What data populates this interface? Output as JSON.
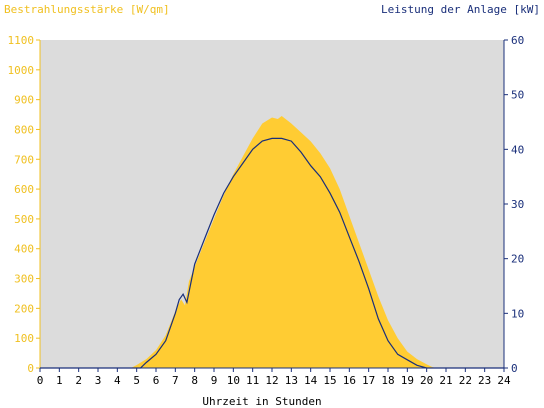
{
  "chart_data": {
    "type": "area",
    "title_left": "Bestrahlungsstärke [W/qm]",
    "title_right": "Leistung der Anlage [kW]",
    "xlabel": "Uhrzeit in Stunden",
    "xlim": [
      0,
      24
    ],
    "x_ticks": [
      "0",
      "1",
      "2",
      "3",
      "4",
      "5",
      "6",
      "7",
      "8",
      "9",
      "10",
      "11",
      "12",
      "13",
      "14",
      "15",
      "16",
      "17",
      "18",
      "19",
      "20",
      "21",
      "22",
      "23",
      "24"
    ],
    "y_left_lim": [
      0,
      1100
    ],
    "y_left_ticks": [
      "0",
      "100",
      "200",
      "300",
      "400",
      "500",
      "600",
      "700",
      "800",
      "900",
      "1000",
      "1100"
    ],
    "y_right_lim": [
      0,
      60
    ],
    "y_right_ticks": [
      "0",
      "10",
      "20",
      "30",
      "40",
      "50",
      "60"
    ],
    "series": [
      {
        "axis": "left",
        "kind": "area",
        "color": "#ffcc33",
        "x": [
          0,
          4.7,
          5.0,
          5.5,
          6.0,
          6.5,
          7.0,
          7.3,
          7.5,
          7.7,
          8.0,
          8.5,
          9.0,
          9.5,
          10.0,
          10.5,
          11.0,
          11.5,
          12.0,
          12.3,
          12.5,
          12.8,
          13.0,
          13.5,
          14.0,
          14.5,
          15.0,
          15.5,
          16.0,
          16.5,
          17.0,
          17.5,
          18.0,
          18.5,
          19.0,
          19.5,
          20.0,
          20.3,
          20.5,
          24
        ],
        "y": [
          0,
          0,
          10,
          30,
          60,
          110,
          190,
          230,
          210,
          290,
          340,
          420,
          500,
          580,
          650,
          710,
          770,
          820,
          840,
          835,
          845,
          830,
          820,
          790,
          760,
          720,
          670,
          600,
          510,
          420,
          330,
          240,
          160,
          100,
          55,
          30,
          12,
          3,
          0,
          0
        ]
      },
      {
        "axis": "right",
        "kind": "line",
        "color": "#1a2f7a",
        "x": [
          0,
          5.2,
          5.5,
          6.0,
          6.5,
          7.0,
          7.2,
          7.4,
          7.6,
          8.0,
          8.5,
          9.0,
          9.5,
          10.0,
          10.5,
          11.0,
          11.5,
          12.0,
          12.5,
          13.0,
          13.5,
          14.0,
          14.5,
          15.0,
          15.5,
          16.0,
          16.5,
          17.0,
          17.5,
          18.0,
          18.5,
          19.0,
          19.5,
          20.0,
          20.2,
          24
        ],
        "y": [
          0,
          0,
          1,
          2.5,
          5,
          10,
          12.5,
          13.5,
          12,
          19,
          23.5,
          28,
          32,
          35,
          37.5,
          40,
          41.5,
          42,
          42,
          41.5,
          39.5,
          37,
          35,
          32,
          28.5,
          24,
          19.5,
          14.5,
          9,
          5,
          2.5,
          1.5,
          0.5,
          0,
          0,
          0
        ]
      }
    ],
    "colors": {
      "plot_background": "#dcdcdc",
      "left_axis": "#f0c020",
      "right_axis": "#1a2f7a",
      "x_axis": "#000000"
    }
  }
}
